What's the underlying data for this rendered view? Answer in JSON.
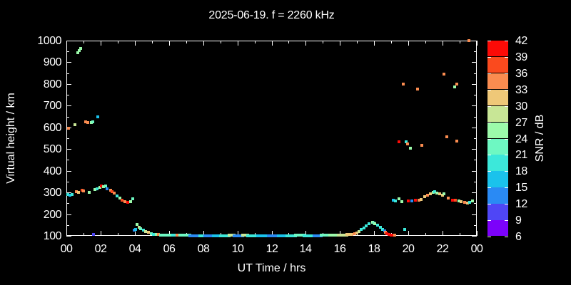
{
  "title": "2025-06-19. f = 2260 kHz",
  "axes": {
    "x_label": "UT Time / hrs",
    "y_label": "Virtual height / km",
    "x_tick_hours": [
      0,
      2,
      4,
      6,
      8,
      10,
      12,
      14,
      16,
      18,
      20,
      22,
      24
    ],
    "x_tick_labels": [
      "00",
      "02",
      "04",
      "06",
      "08",
      "10",
      "12",
      "14",
      "16",
      "18",
      "20",
      "22",
      "00"
    ],
    "x_minor_tick_hours": [
      1,
      3,
      5,
      7,
      9,
      11,
      13,
      15,
      17,
      19,
      21,
      23
    ],
    "y_tick_km": [
      100,
      200,
      300,
      400,
      500,
      600,
      700,
      800,
      900,
      1000
    ],
    "y_tick_labels": [
      "100",
      "200",
      "300",
      "400",
      "500",
      "600",
      "700",
      "800",
      "900",
      "1000"
    ],
    "y_minor_step_km": 50,
    "x_range_hours": [
      0,
      24
    ],
    "y_range_km": [
      100,
      1000
    ]
  },
  "colorbar": {
    "label": "SNR / dB",
    "tick_values": [
      6,
      9,
      12,
      15,
      18,
      21,
      24,
      27,
      30,
      33,
      36,
      39,
      42
    ],
    "bins": [
      {
        "min": 6,
        "max": 9,
        "color": "#7c02fa"
      },
      {
        "min": 9,
        "max": 12,
        "color": "#4f46f6"
      },
      {
        "min": 12,
        "max": 15,
        "color": "#2a8af4"
      },
      {
        "min": 15,
        "max": 18,
        "color": "#1ac2ec"
      },
      {
        "min": 18,
        "max": 21,
        "color": "#3ce8da"
      },
      {
        "min": 21,
        "max": 24,
        "color": "#6ef8c2"
      },
      {
        "min": 24,
        "max": 27,
        "color": "#9cfaaa"
      },
      {
        "min": 27,
        "max": 30,
        "color": "#c8e696"
      },
      {
        "min": 30,
        "max": 33,
        "color": "#efc878"
      },
      {
        "min": 33,
        "max": 36,
        "color": "#fa8c50"
      },
      {
        "min": 36,
        "max": 39,
        "color": "#fa4a1e"
      },
      {
        "min": 39,
        "max": 42,
        "color": "#fb0b07"
      }
    ]
  },
  "chart_data": {
    "type": "scatter",
    "x_unit": "UT hours",
    "y_unit": "virtual height km",
    "color_unit": "SNR dB",
    "xlim": [
      0,
      24
    ],
    "ylim": [
      100,
      1000
    ],
    "grid": false,
    "point_groups": [
      {
        "name": "high-echoes-00h",
        "points": [
          [
            0.67,
            943,
            25
          ],
          [
            0.75,
            953,
            25
          ],
          [
            0.83,
            963,
            25
          ]
        ]
      },
      {
        "name": "cluster-600km-00-02h",
        "points": [
          [
            0.12,
            595,
            34
          ],
          [
            0.5,
            612,
            28
          ],
          [
            1.13,
            625,
            34
          ],
          [
            1.25,
            622,
            34
          ],
          [
            1.46,
            622,
            25
          ],
          [
            1.54,
            625,
            22
          ],
          [
            1.84,
            648,
            16
          ]
        ]
      },
      {
        "name": "f-trace-00-04h",
        "points": [
          [
            0.08,
            290,
            19
          ],
          [
            0.21,
            287,
            16
          ],
          [
            0.33,
            290,
            19
          ],
          [
            0.58,
            304,
            34
          ],
          [
            0.71,
            300,
            31
          ],
          [
            0.92,
            310,
            37
          ],
          [
            1.0,
            307,
            34
          ],
          [
            1.33,
            300,
            25
          ],
          [
            1.67,
            314,
            25
          ],
          [
            1.8,
            317,
            19
          ],
          [
            1.96,
            324,
            25
          ],
          [
            2.05,
            330,
            40
          ],
          [
            2.17,
            327,
            25
          ],
          [
            2.3,
            331,
            22
          ],
          [
            2.38,
            317,
            13
          ],
          [
            2.59,
            311,
            34
          ],
          [
            2.67,
            304,
            37
          ],
          [
            2.8,
            297,
            34
          ],
          [
            2.96,
            284,
            19
          ],
          [
            3.13,
            274,
            25
          ],
          [
            3.26,
            264,
            37
          ],
          [
            3.42,
            257,
            34
          ],
          [
            3.59,
            254,
            40
          ],
          [
            3.76,
            257,
            25
          ],
          [
            3.88,
            271,
            22
          ]
        ]
      },
      {
        "name": "isolated-low-dot",
        "points": [
          [
            1.6,
            106,
            10
          ]
        ]
      },
      {
        "name": "e-layer-onset-04-05h",
        "points": [
          [
            3.97,
            127,
            13
          ],
          [
            4.05,
            130,
            16
          ],
          [
            4.13,
            154,
            25
          ],
          [
            4.25,
            140,
            28
          ],
          [
            4.35,
            133,
            22
          ],
          [
            4.5,
            126,
            19
          ],
          [
            4.65,
            120,
            28
          ],
          [
            4.8,
            115,
            31
          ],
          [
            4.95,
            111,
            22
          ],
          [
            5.1,
            108,
            19
          ],
          [
            5.25,
            106,
            25
          ],
          [
            5.4,
            105,
            34
          ]
        ]
      },
      {
        "name": "evening-peak-17-19h",
        "points": [
          [
            16.7,
            107,
            34
          ],
          [
            16.85,
            110,
            34
          ],
          [
            17.0,
            113,
            31
          ],
          [
            17.1,
            120,
            28
          ],
          [
            17.25,
            130,
            19
          ],
          [
            17.4,
            137,
            19
          ],
          [
            17.55,
            146,
            19
          ],
          [
            17.7,
            155,
            19
          ],
          [
            17.9,
            163,
            25
          ],
          [
            17.97,
            160,
            19
          ],
          [
            18.05,
            155,
            25
          ],
          [
            18.2,
            148,
            19
          ],
          [
            18.35,
            140,
            19
          ],
          [
            18.5,
            130,
            19
          ],
          [
            18.6,
            122,
            13
          ],
          [
            18.67,
            117,
            34
          ],
          [
            18.75,
            110,
            40
          ],
          [
            18.85,
            106,
            40
          ],
          [
            19.0,
            104,
            40
          ],
          [
            19.1,
            103,
            40
          ],
          [
            19.2,
            103,
            34
          ],
          [
            19.8,
            130,
            19
          ]
        ]
      },
      {
        "name": "f-trace-19-24h",
        "points": [
          [
            19.13,
            265,
            16
          ],
          [
            19.25,
            262,
            19
          ],
          [
            19.45,
            270,
            25
          ],
          [
            19.6,
            258,
            25
          ],
          [
            20.0,
            260,
            40
          ],
          [
            20.2,
            260,
            13
          ],
          [
            20.4,
            263,
            40
          ],
          [
            20.6,
            263,
            34
          ],
          [
            20.75,
            266,
            31
          ],
          [
            20.95,
            280,
            31
          ],
          [
            21.1,
            286,
            34
          ],
          [
            21.3,
            293,
            31
          ],
          [
            21.45,
            300,
            25
          ],
          [
            21.52,
            303,
            19
          ],
          [
            21.65,
            297,
            25
          ],
          [
            21.85,
            293,
            31
          ],
          [
            22.0,
            286,
            31
          ],
          [
            22.1,
            293,
            25
          ],
          [
            22.35,
            273,
            34
          ],
          [
            22.6,
            263,
            40
          ],
          [
            22.75,
            263,
            37
          ],
          [
            22.95,
            260,
            25
          ],
          [
            23.1,
            257,
            31
          ],
          [
            23.3,
            253,
            34
          ],
          [
            23.45,
            250,
            31
          ],
          [
            23.6,
            253,
            19
          ],
          [
            23.75,
            260,
            25
          ]
        ]
      },
      {
        "name": "scattered-high-19-24h",
        "points": [
          [
            19.45,
            535,
            40
          ],
          [
            19.7,
            799,
            34
          ],
          [
            19.85,
            532,
            19
          ],
          [
            19.95,
            525,
            34
          ],
          [
            20.1,
            505,
            25
          ],
          [
            20.55,
            776,
            34
          ],
          [
            20.8,
            518,
            34
          ],
          [
            22.1,
            846,
            34
          ],
          [
            22.25,
            555,
            34
          ],
          [
            22.7,
            786,
            25
          ],
          [
            22.85,
            799,
            34
          ],
          [
            22.85,
            537,
            34
          ],
          [
            23.55,
            1000,
            34
          ]
        ]
      }
    ],
    "flat_line_runs_format": "[hour_start, hour_end, km_start, km_end, snr_db]",
    "flat_line_runs": [
      [
        5.5,
        6.2,
        104,
        103,
        22
      ],
      [
        6.2,
        6.45,
        103,
        103,
        19
      ],
      [
        6.45,
        6.65,
        103,
        103,
        34
      ],
      [
        6.65,
        7.2,
        102,
        102,
        22
      ],
      [
        7.2,
        7.8,
        101,
        101,
        13
      ],
      [
        7.8,
        8.1,
        101,
        101,
        19
      ],
      [
        8.1,
        8.6,
        101,
        101,
        13
      ],
      [
        8.6,
        9.0,
        101,
        101,
        16
      ],
      [
        9.0,
        9.5,
        101,
        101,
        19
      ],
      [
        9.5,
        9.8,
        102,
        102,
        28
      ],
      [
        9.8,
        10.3,
        100,
        100,
        13
      ],
      [
        10.3,
        10.6,
        102,
        102,
        28
      ],
      [
        10.6,
        11.2,
        101,
        101,
        19
      ],
      [
        11.2,
        11.8,
        101,
        101,
        16
      ],
      [
        11.8,
        12.4,
        100,
        100,
        13
      ],
      [
        12.4,
        12.9,
        100,
        100,
        16
      ],
      [
        12.9,
        13.4,
        101,
        101,
        19
      ],
      [
        13.4,
        13.9,
        102,
        102,
        22
      ],
      [
        13.9,
        14.5,
        101,
        101,
        19
      ],
      [
        14.5,
        14.9,
        101,
        101,
        13
      ],
      [
        14.9,
        15.4,
        102,
        102,
        22
      ],
      [
        15.4,
        15.9,
        103,
        103,
        25
      ],
      [
        15.9,
        16.4,
        104,
        104,
        28
      ],
      [
        16.4,
        16.65,
        105,
        106,
        31
      ]
    ]
  }
}
